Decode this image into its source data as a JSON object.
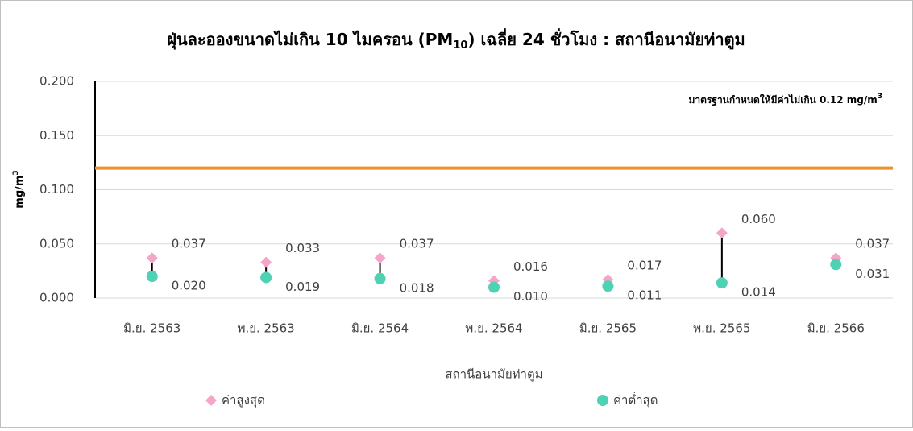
{
  "chart_data": {
    "type": "high-low",
    "title": [
      "ฝุ่นละอองขนาดไม่เกิน 10 ไมครอน (PM",
      "10",
      ") เฉลี่ย 24 ชั่วโมง : สถานีอนามัยท่าตูม"
    ],
    "x_label": "สถานีอนามัยท่าตูม",
    "y_label": [
      "mg/m",
      "3"
    ],
    "annotation": [
      "มาตรฐานกำหนดให้มีค่าไม่เกิน 0.12 mg/m",
      "3"
    ],
    "categories": [
      "มิ.ย. 2563",
      "พ.ย. 2563",
      "มิ.ย. 2564",
      "พ.ย. 2564",
      "มิ.ย. 2565",
      "พ.ย. 2565",
      "มิ.ย. 2566"
    ],
    "series": [
      {
        "name": "ค่าสูงสุด",
        "color": "#f4a6c8",
        "marker": "diamond",
        "values": [
          0.037,
          0.033,
          0.037,
          0.016,
          0.017,
          0.06,
          0.037
        ],
        "value_labels": [
          "0.037",
          "0.033",
          "0.037",
          "0.016",
          "0.017",
          "0.060",
          "0.037"
        ]
      },
      {
        "name": "ค่าต่ำสุด",
        "color": "#4fd1b3",
        "marker": "circle",
        "values": [
          0.02,
          0.019,
          0.018,
          0.01,
          0.011,
          0.014,
          0.031
        ],
        "value_labels": [
          "0.020",
          "0.019",
          "0.018",
          "0.010",
          "0.011",
          "0.014",
          "0.031"
        ]
      }
    ],
    "reference_line": {
      "value": 0.12,
      "color": "#f0902a"
    },
    "ylim": [
      0,
      0.2
    ],
    "yticks": [
      {
        "value": 0,
        "label": "0.000"
      },
      {
        "value": 0.05,
        "label": "0.050"
      },
      {
        "value": 0.1,
        "label": "0.100"
      },
      {
        "value": 0.15,
        "label": "0.150"
      },
      {
        "value": 0.2,
        "label": "0.200"
      }
    ],
    "grid": true
  }
}
